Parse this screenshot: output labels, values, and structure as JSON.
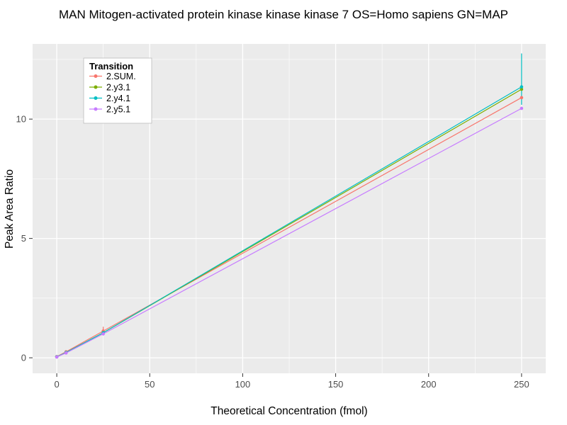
{
  "chart_data": {
    "type": "line",
    "title": "MAN Mitogen-activated protein kinase kinase kinase 7 OS=Homo sapiens GN=MAP",
    "xlabel": "Theoretical Concentration (fmol)",
    "ylabel": "Peak Area Ratio",
    "x": [
      0,
      5,
      25,
      250
    ],
    "series": [
      {
        "name": "2.SUM.",
        "color": "#F8766D",
        "values": [
          0.05,
          0.25,
          1.12,
          10.9
        ]
      },
      {
        "name": "2.y3.1",
        "color": "#7CAE00",
        "values": [
          0.04,
          0.22,
          1.05,
          11.25
        ]
      },
      {
        "name": "2.y4.1",
        "color": "#00BFC4",
        "values": [
          0.04,
          0.22,
          1.05,
          11.35
        ]
      },
      {
        "name": "2.y5.1",
        "color": "#C77CFF",
        "values": [
          0.03,
          0.2,
          1.0,
          10.45
        ]
      }
    ],
    "error_bars": [
      {
        "series": "2.SUM.",
        "x": 25,
        "low": 0.95,
        "high": 1.3
      },
      {
        "series": "2.y4.1",
        "x": 250,
        "low": 10.6,
        "high": 12.75
      }
    ],
    "x_ticks": [
      0,
      50,
      100,
      150,
      200,
      250
    ],
    "y_ticks": [
      0,
      5,
      10
    ],
    "x_minor": [
      25,
      75,
      125,
      175,
      225
    ],
    "y_minor": [
      2.5,
      7.5,
      12.5
    ],
    "xlim": [
      -13,
      263
    ],
    "ylim": [
      -0.65,
      13.15
    ],
    "grid": true,
    "legend": {
      "title": "Transition",
      "position": "top-left-inside"
    },
    "colors": {
      "panel_bg": "#EBEBEB",
      "grid_major": "#FFFFFF",
      "grid_minor": "#FFFFFF",
      "axis_text": "#4D4D4D",
      "tick_mark": "#333333",
      "title_text": "#000000",
      "legend_bg": "#FFFFFF",
      "legend_border": "#BBBBBB"
    }
  }
}
